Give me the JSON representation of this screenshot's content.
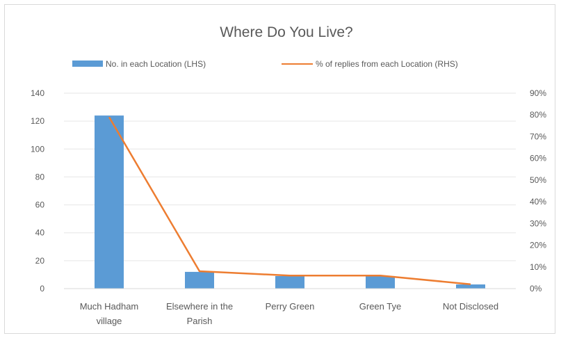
{
  "chart_data": {
    "type": "bar",
    "title": "Where Do You Live?",
    "categories": [
      [
        "Much Hadham",
        "village"
      ],
      [
        "Elsewhere in the",
        "Parish"
      ],
      [
        "Perry Green"
      ],
      [
        "Green Tye"
      ],
      [
        "Not Disclosed"
      ]
    ],
    "series": [
      {
        "name": "No. in each Location (LHS)",
        "type": "bar",
        "axis": "left",
        "color": "#5b9bd5",
        "values": [
          124,
          12,
          9,
          9,
          3
        ]
      },
      {
        "name": "% of replies from each Location (RHS)",
        "type": "line",
        "axis": "right",
        "color": "#ed7d31",
        "values": [
          0.79,
          0.08,
          0.06,
          0.06,
          0.02
        ]
      }
    ],
    "left_axis": {
      "min": 0,
      "max": 140,
      "step": 20,
      "ticks": [
        "0",
        "20",
        "40",
        "60",
        "80",
        "100",
        "120",
        "140"
      ]
    },
    "right_axis": {
      "min": 0,
      "max": 0.9,
      "step": 0.1,
      "ticks": [
        "0%",
        "10%",
        "20%",
        "30%",
        "40%",
        "50%",
        "60%",
        "70%",
        "80%",
        "90%"
      ]
    },
    "grid": true,
    "legend": "top"
  }
}
